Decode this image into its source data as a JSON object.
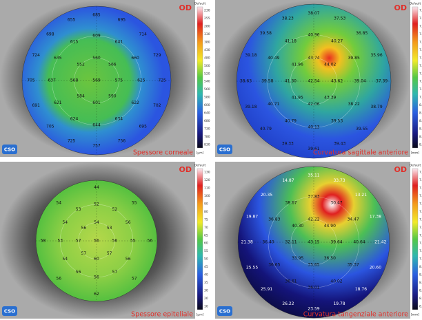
{
  "panels": [
    {
      "eye": "OD",
      "scale_title": "Default",
      "unit": "[µm]",
      "caption": "Spessore corneale",
      "scale_labels": [
        "230",
        "255",
        "280",
        "330",
        "380",
        "430",
        "480",
        "500",
        "520",
        "540",
        "560",
        "580",
        "600",
        "640",
        "680",
        "730",
        "780",
        "830"
      ],
      "rings": [
        [
          "569"
        ],
        [
          "560",
          "566",
          "575",
          "590",
          "601",
          "584",
          "568",
          "552"
        ],
        [
          "609",
          "641",
          "660",
          "625",
          "622",
          "634",
          "644",
          "624",
          "621",
          "637",
          "635",
          "615"
        ],
        [
          "685",
          "695",
          "714",
          "729",
          "725",
          "702",
          "695",
          "756",
          "757",
          "725",
          "705",
          "691",
          "705",
          "724",
          "698",
          "655"
        ]
      ]
    },
    {
      "eye": "OD",
      "scale_title": "Default",
      "unit": "[mm]",
      "caption": "Curvatura sagittale anteriore",
      "scale_labels": [
        "7.15",
        "7.20",
        "7.25",
        "7.30",
        "7.35",
        "7.40",
        "7.45",
        "7.50",
        "7.60",
        "7.70",
        "7.80",
        "7.90",
        "8.00",
        "8.10",
        "8.20",
        "8.33",
        "8.50",
        "8.69"
      ],
      "rings": [
        [
          "42.54"
        ],
        [
          "43.74",
          "44.02",
          "43.62",
          "43.39",
          "42.06",
          "41.95",
          "41.30",
          "41.96"
        ],
        [
          "40.96",
          "40.27",
          "39.85",
          "39.04",
          "38.22",
          "39.53",
          "40.13",
          "40.79",
          "40.71",
          "39.58",
          "40.49",
          "41.18"
        ],
        [
          "38.07",
          "37.53",
          "36.85",
          "35.96",
          "37.39",
          "38.79",
          "39.55",
          "39.43",
          "39.61",
          "39.33",
          "40.79",
          "39.18",
          "38.63",
          "39.18",
          "39.58",
          "38.23"
        ]
      ]
    },
    {
      "eye": "OD",
      "scale_title": "Default",
      "unit": "[µm]",
      "caption": "Spessore epiteliale",
      "scale_labels": [
        "130",
        "120",
        "110",
        "100",
        "90",
        "80",
        "75",
        "70",
        "65",
        "60",
        "55",
        "50",
        "45",
        "40",
        "35",
        "30",
        "20",
        "10"
      ],
      "rings": [
        [
          "56"
        ],
        [
          "54",
          "53",
          "56",
          "57",
          "60",
          "57",
          "57",
          "56"
        ],
        [
          "52",
          "52",
          "56",
          "55",
          "56",
          "57",
          "56",
          "56",
          "54",
          "53",
          "54",
          "53"
        ],
        [
          "44",
          "55",
          "56",
          "57",
          "62",
          "56",
          "58",
          "54"
        ]
      ]
    },
    {
      "eye": "OD",
      "scale_title": "Default",
      "unit": "[mm]",
      "caption": "Curvatura tangenziale anteriore",
      "scale_labels": [
        "7.15",
        "7.20",
        "7.25",
        "7.30",
        "7.35",
        "7.40",
        "7.45",
        "7.50",
        "7.60",
        "7.70",
        "7.80",
        "7.90",
        "8.00",
        "8.10",
        "8.20",
        "8.33",
        "8.50",
        "8.69"
      ],
      "rings": [
        [
          "43.15"
        ],
        [
          "42.22",
          "44.90",
          "39.64",
          "36.50",
          "35.65",
          "33.95",
          "32.11",
          "40.30"
        ],
        [
          "37.83",
          "30.47",
          "34.47",
          "40.64",
          "35.37",
          "40.02",
          "36.01",
          "36.61",
          "36.65",
          "36.40",
          "36.83",
          "38.67"
        ],
        [
          "35.11",
          "33.73",
          "13.21",
          "17.38",
          "21.42",
          "20.60",
          "18.76",
          "19.78",
          "23.59",
          "26.22",
          "25.91",
          "25.55",
          "21.38",
          "19.87",
          "20.35",
          "14.87"
        ]
      ]
    }
  ]
}
